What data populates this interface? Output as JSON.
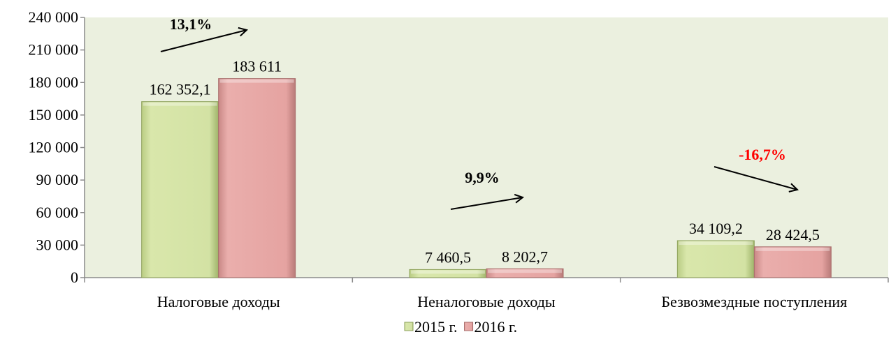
{
  "chart_data": {
    "type": "bar",
    "categories": [
      "Налоговые доходы",
      "Неналоговые доходы",
      "Безвозмездные поступления"
    ],
    "series": [
      {
        "name": "2015 г.",
        "values": [
          162352.1,
          7460.5,
          34109.2
        ],
        "labels": [
          "162 352,1",
          "7 460,5",
          "34 109,2"
        ],
        "color": "#d3e2a4"
      },
      {
        "name": "2016 г.",
        "values": [
          183611,
          8202.7,
          28424.5
        ],
        "labels": [
          "183 611",
          "8 202,7",
          "28 424,5"
        ],
        "color": "#e5a3a1"
      }
    ],
    "ylim": [
      0,
      240000
    ],
    "yticks": [
      0,
      30000,
      60000,
      90000,
      120000,
      150000,
      180000,
      210000,
      240000
    ],
    "ytick_labels": [
      "0",
      "30 000",
      "60 000",
      "90 000",
      "120 000",
      "150 000",
      "180 000",
      "210 000",
      "240 000"
    ],
    "annotations": [
      {
        "text": "13,1%",
        "color": "#000000",
        "direction": "up"
      },
      {
        "text": "9,9%",
        "color": "#000000",
        "direction": "up"
      },
      {
        "text": "-16,7%",
        "color": "#ff0000",
        "direction": "down"
      }
    ],
    "plot_background": "#ebf0df",
    "legend_position": "bottom",
    "grid": false
  }
}
